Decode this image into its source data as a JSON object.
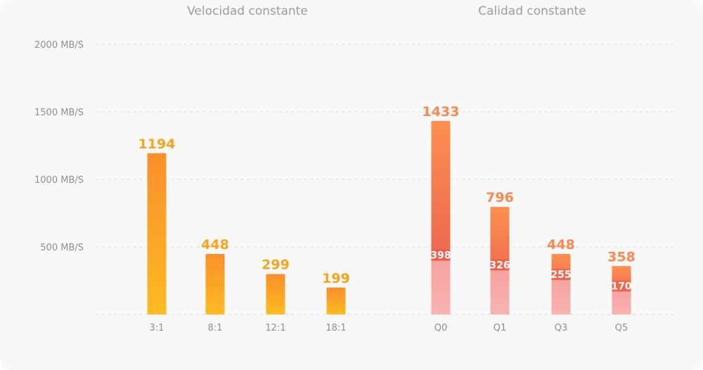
{
  "chart_data": {
    "type": "bar",
    "y_unit": "MB/S",
    "ylim": [
      0,
      2000
    ],
    "yticks": [
      {
        "value": 2000,
        "label": "2000 MB/S"
      },
      {
        "value": 1500,
        "label": "1500 MB/S"
      },
      {
        "value": 1000,
        "label": "1000 MB/S"
      },
      {
        "value": 500,
        "label": "500 MB/S"
      }
    ],
    "grid": true,
    "groups": [
      {
        "title": "Velocidad constante",
        "categories": [
          "3:1",
          "8:1",
          "12:1",
          "18:1"
        ],
        "values": [
          1194,
          448,
          299,
          199
        ],
        "colors": {
          "top": "#f98f2c",
          "bottom": "#fdbb22",
          "label": "#f5a51c"
        }
      },
      {
        "title": "Calidad constante",
        "categories": [
          "Q0",
          "Q1",
          "Q3",
          "Q5"
        ],
        "values": [
          1433,
          796,
          448,
          358
        ],
        "inner_values": [
          398,
          326,
          255,
          170
        ],
        "colors": {
          "top": "#fd8b4e",
          "mid": "#e85b50",
          "bottom": "#f7abab",
          "label": "#f78a52"
        }
      }
    ]
  }
}
